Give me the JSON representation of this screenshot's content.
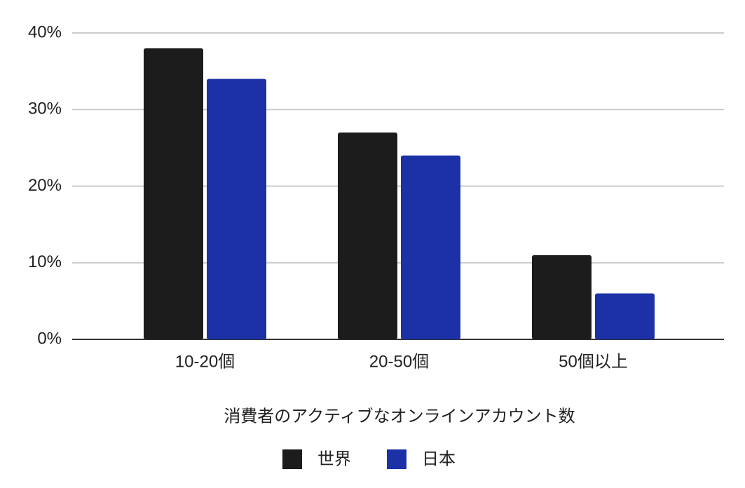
{
  "chart_data": {
    "type": "bar",
    "categories": [
      "10-20個",
      "20-50個",
      "50個以上"
    ],
    "series": [
      {
        "name": "世界",
        "color": "#1c1c1c",
        "values": [
          38,
          27,
          11
        ]
      },
      {
        "name": "日本",
        "color": "#1c31a5",
        "values": [
          34,
          24,
          6
        ]
      }
    ],
    "x_label": "消費者のアクティブなオンラインアカウント数",
    "ylim": [
      0,
      40
    ],
    "yticks": [
      {
        "value": 0,
        "label": "0%"
      },
      {
        "value": 10,
        "label": "10%"
      },
      {
        "value": 20,
        "label": "20%"
      },
      {
        "value": 30,
        "label": "30%"
      },
      {
        "value": 40,
        "label": "40%"
      }
    ],
    "grid": true,
    "legend": "bottom"
  }
}
